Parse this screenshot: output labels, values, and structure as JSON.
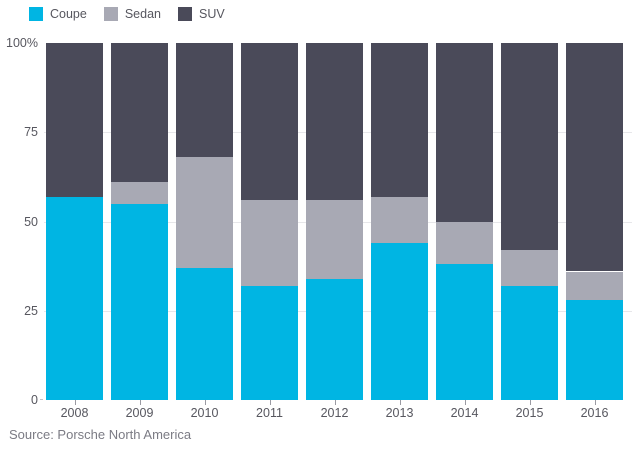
{
  "chart_data": {
    "type": "bar",
    "variant": "stacked-100-percent",
    "categories": [
      "2008",
      "2009",
      "2010",
      "2011",
      "2012",
      "2013",
      "2014",
      "2015",
      "2016"
    ],
    "series": [
      {
        "name": "Coupe",
        "color": "#00b5e3",
        "values": [
          57,
          55,
          37,
          32,
          34,
          44,
          38,
          32,
          28
        ]
      },
      {
        "name": "Sedan",
        "color": "#a8a9b4",
        "values": [
          0,
          6,
          31,
          24,
          22,
          13,
          12,
          10,
          8
        ]
      },
      {
        "name": "SUV",
        "color": "#4a4a59",
        "values": [
          43,
          39,
          32,
          44,
          44,
          43,
          50,
          58,
          64
        ]
      }
    ],
    "y_axis": {
      "tick_labels": [
        "100%",
        "75",
        "50",
        "25",
        "0"
      ],
      "tick_values": [
        100,
        75,
        50,
        25,
        0
      ],
      "gridline_values": [
        75,
        50,
        25
      ],
      "range": [
        0,
        100
      ]
    },
    "grid": "horizontal",
    "legend_position": "top-left",
    "source": "Source: Porsche North America"
  },
  "colors": {
    "coupe": "#00b5e3",
    "sedan": "#a8a9b4",
    "suv": "#4a4a59",
    "axis_text": "#57575f",
    "source_text": "#7b7b84",
    "gridline": "#e7e7ea"
  }
}
